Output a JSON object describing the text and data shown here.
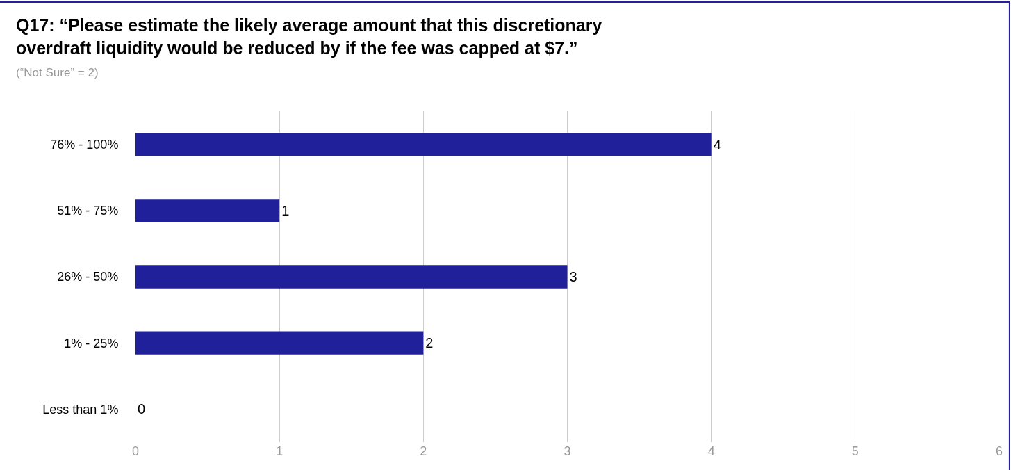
{
  "chart_data": {
    "type": "bar",
    "orientation": "horizontal",
    "title": "Q17: “Please estimate the likely average amount that this discretionary overdraft liquidity would be reduced by if the fee was capped at $7.”",
    "subtitle": "(“Not Sure” = 2)",
    "categories": [
      "76% - 100%",
      "51% - 75%",
      "26% - 50%",
      "1% - 25%",
      "Less than 1%"
    ],
    "values": [
      4,
      1,
      3,
      2,
      0
    ],
    "color": "#20209a",
    "data_labels": true,
    "xlim": [
      0,
      6
    ],
    "xticks": [
      0,
      1,
      2,
      3,
      4,
      5,
      6
    ],
    "grid": "x",
    "legend": false
  }
}
